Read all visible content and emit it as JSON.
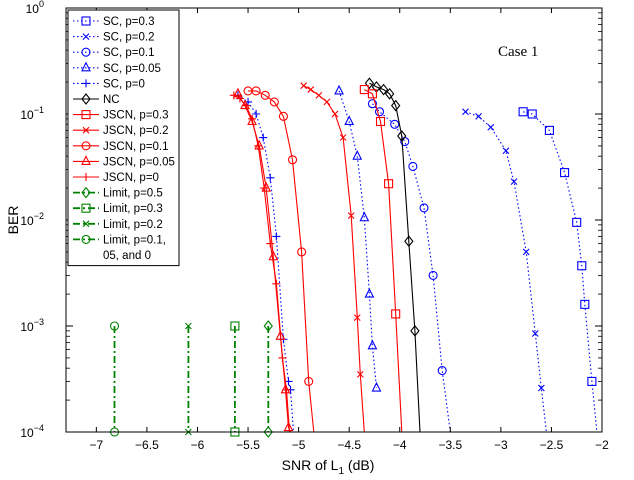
{
  "chart_data": {
    "type": "line",
    "title": "",
    "xlabel": "SNR of L",
    "xlabel_sub": "1",
    "xlabel_unit": " (dB)",
    "ylabel": "BER",
    "xlim": [
      -7.3,
      -2
    ],
    "ylim": [
      0.0001,
      1
    ],
    "yscale": "log",
    "grid": false,
    "legend_position": "top-left",
    "annotation": "Case 1",
    "x_ticks": [
      -7,
      -6.5,
      -6,
      -5.5,
      -5,
      -4.5,
      -4,
      -3.5,
      -3,
      -2.5,
      -2
    ],
    "x_tick_labels": [
      "−7",
      "−6.5",
      "−6",
      "−5.5",
      "−5",
      "−4.5",
      "−4",
      "−3.5",
      "−3",
      "−2.5",
      "−2"
    ],
    "y_ticks": [
      {
        "value": 1,
        "base": "10",
        "exp": "0"
      },
      {
        "value": 0.1,
        "base": "10",
        "exp": "−1"
      },
      {
        "value": 0.01,
        "base": "10",
        "exp": "−2"
      },
      {
        "value": 0.001,
        "base": "10",
        "exp": "−3"
      },
      {
        "value": 0.0001,
        "base": "10",
        "exp": "−4"
      }
    ],
    "series": [
      {
        "name": "SC, p=0.3",
        "color": "#0000ff",
        "dash": "dot",
        "marker": "square",
        "x": [
          -2.78,
          -2.69,
          -2.52,
          -2.37,
          -2.25,
          -2.2,
          -2.17,
          -2.1,
          -2.05
        ],
        "y": [
          0.105,
          0.1,
          0.07,
          0.028,
          0.0095,
          0.0037,
          0.0016,
          0.0003,
          0.0001
        ]
      },
      {
        "name": "SC, p=0.2",
        "color": "#0000ff",
        "dash": "dot",
        "marker": "x",
        "x": [
          -3.35,
          -3.22,
          -3.1,
          -2.95,
          -2.87,
          -2.75,
          -2.66,
          -2.6,
          -2.55
        ],
        "y": [
          0.105,
          0.095,
          0.075,
          0.045,
          0.023,
          0.005,
          0.00085,
          0.00026,
          0.0001
        ]
      },
      {
        "name": "SC, p=0.1",
        "color": "#0000ff",
        "dash": "dot",
        "marker": "circle",
        "x": [
          -4.27,
          -4.2,
          -4.05,
          -3.95,
          -3.87,
          -3.76,
          -3.67,
          -3.58,
          -3.5
        ],
        "y": [
          0.125,
          0.105,
          0.08,
          0.055,
          0.032,
          0.013,
          0.003,
          0.00038,
          0.0001
        ]
      },
      {
        "name": "SC, p=0.05",
        "color": "#0000ff",
        "dash": "dot",
        "marker": "triangle",
        "x": [
          -4.6,
          -4.5,
          -4.42,
          -4.35,
          -4.3,
          -4.27,
          -4.23
        ],
        "y": [
          0.165,
          0.085,
          0.04,
          0.0105,
          0.002,
          0.00065,
          0.00026
        ]
      },
      {
        "name": "SC, p=0",
        "color": "#0000ff",
        "dash": "dot",
        "marker": "plus",
        "x": [
          -5.6,
          -5.5,
          -5.42,
          -5.35,
          -5.28,
          -5.22,
          -5.15,
          -5.1,
          -5.08,
          -5.05
        ],
        "y": [
          0.15,
          0.13,
          0.1,
          0.06,
          0.025,
          0.007,
          0.00075,
          0.0003,
          0.00025,
          0.0001
        ]
      },
      {
        "name": "NC",
        "color": "#000000",
        "dash": "solid",
        "marker": "diamond",
        "x": [
          -4.3,
          -4.23,
          -4.16,
          -4.1,
          -4.04,
          -3.98,
          -3.91,
          -3.85,
          -3.8
        ],
        "y": [
          0.195,
          0.18,
          0.17,
          0.155,
          0.12,
          0.062,
          0.0063,
          0.0009,
          0.0001
        ]
      },
      {
        "name": "JSCN, p=0.3",
        "color": "#ff0000",
        "dash": "solid",
        "marker": "square",
        "x": [
          -4.35,
          -4.27,
          -4.19,
          -4.11,
          -4.04,
          -3.98
        ],
        "y": [
          0.17,
          0.155,
          0.085,
          0.022,
          0.0013,
          0.0001
        ]
      },
      {
        "name": "JSCN, p=0.2",
        "color": "#ff0000",
        "dash": "solid",
        "marker": "x",
        "x": [
          -4.95,
          -4.88,
          -4.8,
          -4.72,
          -4.64,
          -4.56,
          -4.48,
          -4.42,
          -4.39,
          -4.35
        ],
        "y": [
          0.185,
          0.17,
          0.15,
          0.13,
          0.1,
          0.06,
          0.011,
          0.0012,
          0.00035,
          0.0001
        ]
      },
      {
        "name": "JSCN, p=0.1",
        "color": "#ff0000",
        "dash": "solid",
        "marker": "circle",
        "x": [
          -5.5,
          -5.42,
          -5.33,
          -5.24,
          -5.15,
          -5.06,
          -4.97,
          -4.9,
          -4.85
        ],
        "y": [
          0.165,
          0.165,
          0.15,
          0.13,
          0.095,
          0.037,
          0.005,
          0.0003,
          0.0001
        ]
      },
      {
        "name": "JSCN, p=0.05",
        "color": "#ff0000",
        "dash": "solid",
        "marker": "triangle",
        "x": [
          -5.6,
          -5.53,
          -5.46,
          -5.39,
          -5.32,
          -5.25,
          -5.18,
          -5.13,
          -5.1,
          -5.08
        ],
        "y": [
          0.155,
          0.12,
          0.085,
          0.05,
          0.02,
          0.0045,
          0.0008,
          0.00025,
          0.00011,
          0.0001
        ]
      },
      {
        "name": "JSCN, p=0",
        "color": "#ff0000",
        "dash": "solid",
        "marker": "plus",
        "x": [
          -5.64,
          -5.58,
          -5.52,
          -5.46,
          -5.4,
          -5.34,
          -5.28,
          -5.22,
          -5.16,
          -5.12,
          -5.09
        ],
        "y": [
          0.15,
          0.14,
          0.12,
          0.09,
          0.05,
          0.02,
          0.006,
          0.0025,
          0.0005,
          0.00025,
          0.0001
        ]
      },
      {
        "name": "Limit, p=0.5",
        "color": "#008000",
        "dash": "dashdot",
        "marker": "diamond",
        "x": [
          -5.3,
          -5.3
        ],
        "y": [
          0.001,
          0.0001
        ]
      },
      {
        "name": "Limit, p=0.3",
        "color": "#008000",
        "dash": "dashdot",
        "marker": "square",
        "x": [
          -5.63,
          -5.63
        ],
        "y": [
          0.001,
          0.0001
        ]
      },
      {
        "name": "Limit, p=0.2",
        "color": "#008000",
        "dash": "dashdot",
        "marker": "x",
        "x": [
          -6.09,
          -6.09
        ],
        "y": [
          0.001,
          0.0001
        ]
      },
      {
        "name": "Limit, p=0.1, 05, and 0",
        "name_lines": [
          "Limit, p=0.1,",
          "05, and 0"
        ],
        "color": "#008000",
        "dash": "dashdot",
        "marker": "circle",
        "x": [
          -6.82,
          -6.82
        ],
        "y": [
          0.001,
          0.0001
        ]
      }
    ]
  }
}
